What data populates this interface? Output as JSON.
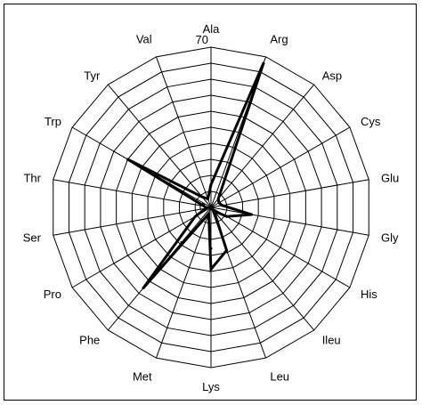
{
  "chart_data": {
    "type": "radar",
    "title": "",
    "categories": [
      "Ala",
      "Arg",
      "Asp",
      "Cys",
      "Glu",
      "Gly",
      "His",
      "Ileu",
      "Leu",
      "Lys",
      "Met",
      "Phe",
      "Pro",
      "Ser",
      "Thr",
      "Trp",
      "Tyr",
      "Val"
    ],
    "rlim": [
      0,
      70
    ],
    "r_ticks": [
      0,
      70
    ],
    "grid_rings": 10,
    "grid": true,
    "legend": "none",
    "series": [
      {
        "values": [
          10,
          67,
          5,
          4,
          5,
          18,
          8,
          2,
          20,
          27,
          3,
          46,
          8,
          2,
          3,
          42,
          6,
          4
        ],
        "color": "#000000"
      }
    ],
    "extra_points": [
      {
        "category": "Phe",
        "value": 20
      },
      {
        "category": "Lys",
        "value": 18
      }
    ]
  }
}
